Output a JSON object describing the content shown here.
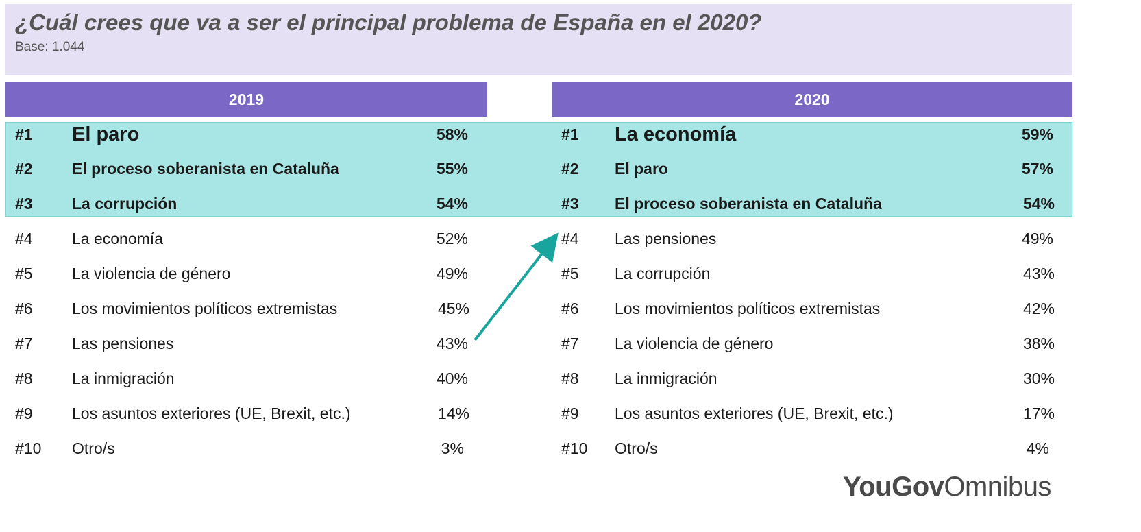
{
  "header": {
    "title": "¿Cuál crees que va a ser el principal problema de España en el 2020?",
    "subtitle": "Base: 1.044"
  },
  "logo": {
    "part1": "YouGov",
    "part2": "Omnibus"
  },
  "colors": {
    "title_bg": "#e5e0f3",
    "header_bg": "#7b68c6",
    "highlight_bg": "#a8e6e5",
    "arrow": "#1aa49e"
  },
  "chart_data": {
    "type": "table",
    "columns": [
      "2019",
      "2020"
    ],
    "highlighted_top_n": 3,
    "tables": [
      {
        "year": "2019",
        "rows": [
          {
            "rank": "#1",
            "label": "El paro",
            "value": "58%"
          },
          {
            "rank": "#2",
            "label": "El proceso soberanista en Cataluña",
            "value": "55%"
          },
          {
            "rank": "#3",
            "label": "La corrupción",
            "value": "54%"
          },
          {
            "rank": "#4",
            "label": "La economía",
            "value": "52%"
          },
          {
            "rank": "#5",
            "label": "La violencia de género",
            "value": "49%"
          },
          {
            "rank": "#6",
            "label": "Los movimientos políticos extremistas",
            "value": "45%"
          },
          {
            "rank": "#7",
            "label": "Las pensiones",
            "value": "43%"
          },
          {
            "rank": "#8",
            "label": "La inmigración",
            "value": "40%"
          },
          {
            "rank": "#9",
            "label": "Los asuntos exteriores (UE, Brexit, etc.)",
            "value": "14%"
          },
          {
            "rank": "#10",
            "label": "Otro/s",
            "value": "3%"
          }
        ]
      },
      {
        "year": "2020",
        "rows": [
          {
            "rank": "#1",
            "label": "La economía",
            "value": "59%"
          },
          {
            "rank": "#2",
            "label": "El paro",
            "value": "57%"
          },
          {
            "rank": "#3",
            "label": "El proceso soberanista en Cataluña",
            "value": "54%"
          },
          {
            "rank": "#4",
            "label": "Las pensiones",
            "value": "49%"
          },
          {
            "rank": "#5",
            "label": "La corrupción",
            "value": "43%"
          },
          {
            "rank": "#6",
            "label": "Los movimientos políticos extremistas",
            "value": "42%"
          },
          {
            "rank": "#7",
            "label": "La violencia de género",
            "value": "38%"
          },
          {
            "rank": "#8",
            "label": "La inmigración",
            "value": "30%"
          },
          {
            "rank": "#9",
            "label": "Los asuntos exteriores (UE, Brexit, etc.)",
            "value": "17%"
          },
          {
            "rank": "#10",
            "label": "Otro/s",
            "value": "4%"
          }
        ]
      }
    ],
    "annotation": {
      "type": "arrow",
      "from": "2019 #7 Las pensiones",
      "to": "2020 #4 Las pensiones"
    }
  }
}
